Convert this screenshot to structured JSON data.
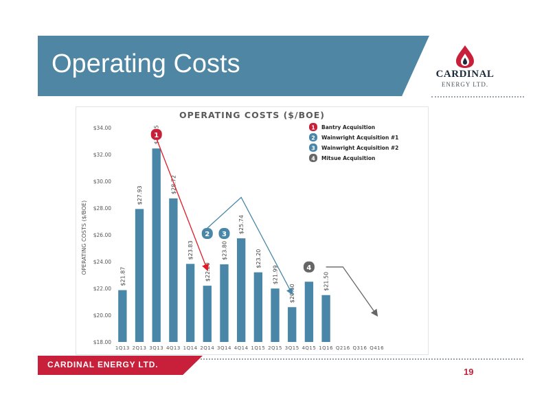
{
  "slide": {
    "title": "Operating Costs",
    "footer": "CARDINAL ENERGY LTD.",
    "page_number": "19"
  },
  "logo": {
    "name": "CARDINAL",
    "sub": "ENERGY LTD.",
    "icon": "flame-drop-icon"
  },
  "colors": {
    "banner": "#4e86a3",
    "bar": "#4a86a8",
    "accent_red": "#c8203a",
    "arrow_red": "#e01b24",
    "marker_gray": "#666666"
  },
  "chart_data": {
    "type": "bar",
    "title": "OPERATING COSTS ($/BOE)",
    "ylabel": "OPERATING COSTS ($/BOE)",
    "xlabel": "",
    "ylim": [
      18,
      34
    ],
    "yticks": [
      18,
      20,
      22,
      24,
      26,
      28,
      30,
      32,
      34
    ],
    "ytick_labels": [
      "$18.00",
      "$20.00",
      "$22.00",
      "$24.00",
      "$26.00",
      "$28.00",
      "$30.00",
      "$32.00",
      "$34.00"
    ],
    "categories": [
      "1Q13",
      "2Q13",
      "3Q13",
      "4Q13",
      "1Q14",
      "2Q14",
      "3Q14",
      "4Q14",
      "1Q15",
      "2Q15",
      "3Q15",
      "4Q15",
      "1Q16",
      "Q216",
      "Q316",
      "Q416"
    ],
    "values": [
      21.87,
      27.93,
      32.45,
      28.72,
      23.83,
      22.2,
      23.8,
      25.74,
      23.2,
      21.99,
      20.6,
      22.5,
      21.5,
      null,
      null,
      null
    ],
    "data_labels": [
      "$21.87",
      "$27.93",
      "$32.45",
      "$28.72",
      "$23.83",
      "$22.20",
      "$23.80",
      "$25.74",
      "$23.20",
      "$21.99",
      "$20.60",
      "",
      "$21.50",
      "",
      "",
      ""
    ],
    "grid": false,
    "legend_position": "top-right",
    "legend": [
      {
        "num": "1",
        "label": "Bantry Acquisition",
        "color": "#c8203a"
      },
      {
        "num": "2",
        "label": "Wainwright Acquisition  #1",
        "color": "#4a86a8"
      },
      {
        "num": "3",
        "label": "Wainwright Acquisition  #2",
        "color": "#4a86a8"
      },
      {
        "num": "4",
        "label": "Mitsue Acquisition",
        "color": "#666666"
      }
    ],
    "annotations": [
      {
        "num": "1",
        "color": "#c8203a",
        "at_category": "3Q13",
        "at_value": 33.5,
        "arrow_from": [
          "3Q13",
          33.2
        ],
        "arrow_to": [
          "2Q14",
          23.4
        ],
        "arrow_color": "#e01b24"
      },
      {
        "num": "2",
        "color": "#4a86a8",
        "at_category": "2Q14",
        "at_value": 26.1
      },
      {
        "num": "3",
        "color": "#4a86a8",
        "at_category": "3Q14",
        "at_value": 26.1,
        "arrow_via": [
          "4Q14",
          28.8
        ],
        "arrow_from": [
          "2Q14",
          26.5
        ],
        "arrow_to": [
          "3Q15",
          21.6
        ],
        "arrow_color": "#4a86a8"
      },
      {
        "num": "4",
        "color": "#666666",
        "at_category": "4Q15",
        "at_value": 23.6,
        "arrow_from": [
          "1Q16",
          23.6
        ],
        "arrow_via": [
          "Q216",
          23.6
        ],
        "arrow_to": [
          "Q416",
          20.0
        ],
        "arrow_color": "#666666"
      }
    ]
  }
}
